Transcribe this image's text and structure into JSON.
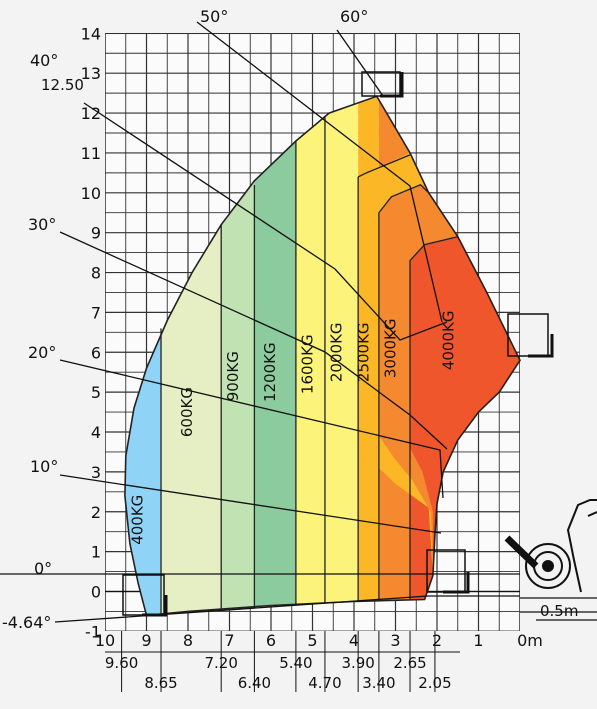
{
  "chart_data": {
    "type": "area",
    "title": "",
    "xlabel": "",
    "ylabel": "",
    "xlim": [
      0,
      10
    ],
    "ylim": [
      -1,
      14
    ],
    "grid": true,
    "y_ticks": [
      "14",
      "13",
      "12",
      "11",
      "10",
      "9",
      "8",
      "7",
      "6",
      "5",
      "4",
      "3",
      "2",
      "1",
      "0",
      "-1"
    ],
    "x_ticks": [
      "10",
      "9",
      "8",
      "7",
      "6",
      "5",
      "4",
      "3",
      "2",
      "1",
      "0m"
    ],
    "reach_labels_upper": [
      "9.60",
      "7.20",
      "5.40",
      "3.90",
      "2.65"
    ],
    "reach_labels_lower": [
      "8.65",
      "6.40",
      "4.70",
      "3.40",
      "2.05"
    ],
    "reach_values": [
      9.6,
      8.65,
      7.2,
      6.4,
      5.4,
      4.7,
      3.9,
      3.4,
      2.65,
      2.05
    ],
    "max_height_label": "12.50",
    "max_height": 12.5,
    "boom_angles": [
      {
        "label": "60°",
        "deg": 60
      },
      {
        "label": "50°",
        "deg": 50
      },
      {
        "label": "40°",
        "deg": 40
      },
      {
        "label": "30°",
        "deg": 30
      },
      {
        "label": "20°",
        "deg": 20
      },
      {
        "label": "10°",
        "deg": 10
      },
      {
        "label": "0°",
        "deg": 0
      },
      {
        "label": "-4.64°",
        "deg": -4.64
      }
    ],
    "load_zones": [
      {
        "label": "400KG",
        "x_from": 9.6,
        "x_to": 8.65,
        "color": "#8fd3f6"
      },
      {
        "label": "600KG",
        "x_from": 8.65,
        "x_to": 7.2,
        "color": "#e6efc4"
      },
      {
        "label": "900KG",
        "x_from": 7.2,
        "x_to": 6.4,
        "color": "#c1e2b3"
      },
      {
        "label": "1200KG",
        "x_from": 6.4,
        "x_to": 5.4,
        "color": "#8ccb9d"
      },
      {
        "label": "1600KG",
        "x_from": 5.4,
        "x_to": 4.7,
        "color": "#fbf37a"
      },
      {
        "label": "2000KG",
        "x_from": 4.7,
        "x_to": 3.9,
        "color": "#fbf37a"
      },
      {
        "label": "2500KG",
        "x_from": 3.9,
        "x_to": 3.4,
        "color": "#fcb726"
      },
      {
        "label": "3000KG",
        "x_from": 3.4,
        "x_to": 2.65,
        "color": "#f5892f"
      },
      {
        "label": "4000KG",
        "x_from": 2.65,
        "x_to": 0,
        "color": "#f0562b"
      }
    ],
    "scale_label": "0.5m"
  }
}
